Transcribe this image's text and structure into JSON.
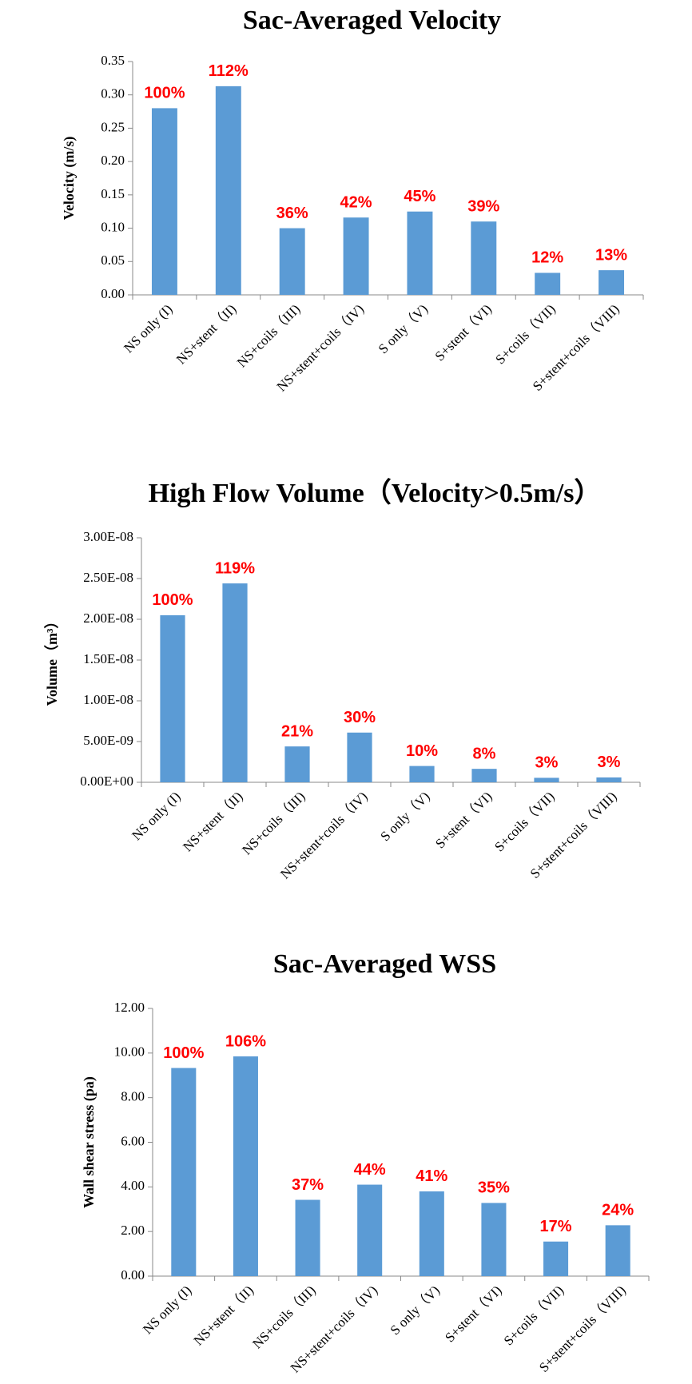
{
  "chart_data": [
    {
      "type": "bar",
      "title": "Sac-Averaged Velocity",
      "y_label": "Velocity (m/s)",
      "color": "#5b9bd5",
      "categories": [
        "NS only (I)",
        "NS+stent（II)",
        "NS+coils（III)",
        "NS+stent+coils（IV)",
        "S only（V)",
        "S+stent（VI)",
        "S+coils（VII)",
        "S+stent+coils（VIII)"
      ],
      "values": [
        0.28,
        0.313,
        0.1,
        0.116,
        0.125,
        0.11,
        0.033,
        0.037
      ],
      "bar_labels": [
        "100%",
        "112%",
        "36%",
        "42%",
        "45%",
        "39%",
        "12%",
        "13%"
      ],
      "ylim": [
        0,
        0.35
      ],
      "yticks": [
        {
          "value": 0,
          "label": "0.00"
        },
        {
          "value": 0.05,
          "label": "0.05"
        },
        {
          "value": 0.1,
          "label": "0.10"
        },
        {
          "value": 0.15,
          "label": "0.15"
        },
        {
          "value": 0.2,
          "label": "0.20"
        },
        {
          "value": 0.25,
          "label": "0.25"
        },
        {
          "value": 0.3,
          "label": "0.30"
        },
        {
          "value": 0.35,
          "label": "0.35"
        }
      ]
    },
    {
      "type": "bar",
      "title": "High Flow Volume（Velocity>0.5m/s）",
      "y_label": "Volume（m³）",
      "color": "#5b9bd5",
      "categories": [
        "NS only (I)",
        "NS+stent（II)",
        "NS+coils（III)",
        "NS+stent+coils（IV)",
        "S only（V)",
        "S+stent（VI)",
        "S+coils（VII)",
        "S+stent+coils（VIII)"
      ],
      "values": [
        2.05e-08,
        2.44e-08,
        4.4e-09,
        6.1e-09,
        2e-09,
        1.65e-09,
        5.5e-10,
        6e-10
      ],
      "bar_labels": [
        "100%",
        "119%",
        "21%",
        "30%",
        "10%",
        "8%",
        "3%",
        "3%"
      ],
      "ylim": [
        0,
        3e-08
      ],
      "yticks": [
        {
          "value": 0,
          "label": "0.00E+00"
        },
        {
          "value": 5e-09,
          "label": "5.00E-09"
        },
        {
          "value": 1e-08,
          "label": "1.00E-08"
        },
        {
          "value": 1.5e-08,
          "label": "1.50E-08"
        },
        {
          "value": 2e-08,
          "label": "2.00E-08"
        },
        {
          "value": 2.5e-08,
          "label": "2.50E-08"
        },
        {
          "value": 3e-08,
          "label": "3.00E-08"
        }
      ]
    },
    {
      "type": "bar",
      "title": "Sac-Averaged WSS",
      "y_label": "Wall shear stress (pa)",
      "color": "#5b9bd5",
      "categories": [
        "NS only (I)",
        "NS+stent（II)",
        "NS+coils（III)",
        "NS+stent+coils（IV)",
        "S only（V)",
        "S+stent（VI)",
        "S+coils（VII)",
        "S+stent+coils（VIII)"
      ],
      "values": [
        9.33,
        9.85,
        3.42,
        4.1,
        3.8,
        3.28,
        1.55,
        2.28
      ],
      "bar_labels": [
        "100%",
        "106%",
        "37%",
        "44%",
        "41%",
        "35%",
        "17%",
        "24%"
      ],
      "ylim": [
        0,
        12
      ],
      "yticks": [
        {
          "value": 0,
          "label": "0.00"
        },
        {
          "value": 2,
          "label": "2.00"
        },
        {
          "value": 4,
          "label": "4.00"
        },
        {
          "value": 6,
          "label": "6.00"
        },
        {
          "value": 8,
          "label": "8.00"
        },
        {
          "value": 10,
          "label": "10.00"
        },
        {
          "value": 12,
          "label": "12.00"
        }
      ]
    }
  ]
}
